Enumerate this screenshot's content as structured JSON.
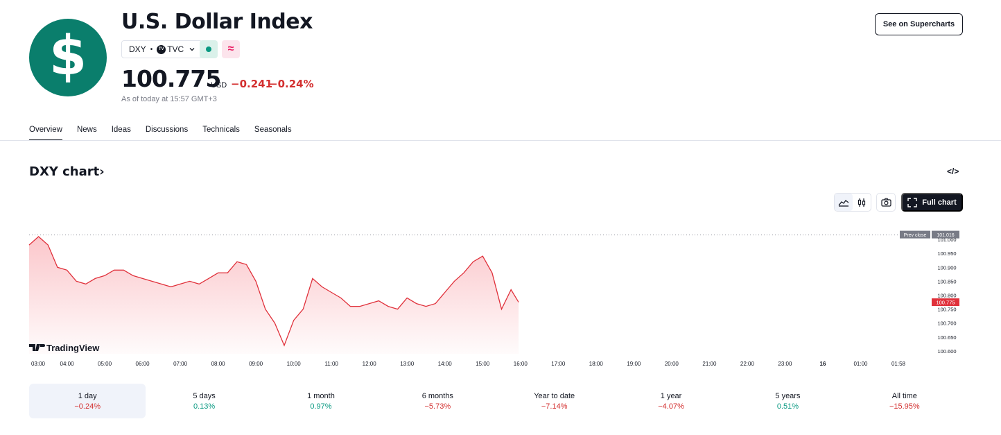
{
  "header": {
    "logo_glyph": "$",
    "title": "U.S. Dollar Index",
    "symbol": "DXY",
    "separator": "•",
    "exchange_badge": "TV",
    "exchange": "TVC",
    "delay_glyph": "≈",
    "price": "100.775",
    "currency": "USD",
    "change": "−0.241",
    "change_percent": "−0.24%",
    "as_of": "As of today at 15:57 GMT+3",
    "supercharts_button": "See on Supercharts"
  },
  "tabs": [
    {
      "label": "Overview",
      "active": true
    },
    {
      "label": "News",
      "active": false
    },
    {
      "label": "Ideas",
      "active": false
    },
    {
      "label": "Discussions",
      "active": false
    },
    {
      "label": "Technicals",
      "active": false
    },
    {
      "label": "Seasonals",
      "active": false
    }
  ],
  "chart_section": {
    "title": "DXY chart",
    "title_chevron": "›",
    "embed_icon": "</>",
    "full_chart_button": "Full chart",
    "watermark": "TradingView"
  },
  "colors": {
    "brand": "#0a7e6c",
    "negative": "#d32f2f",
    "positive": "#089981",
    "line": "#e0313b"
  },
  "chart_data": {
    "type": "area",
    "series": [
      {
        "x": [
          "03:00",
          "03:15",
          "03:30",
          "03:45",
          "04:00",
          "04:15",
          "04:30",
          "04:45",
          "05:00",
          "05:15",
          "05:30",
          "05:45",
          "06:00",
          "06:15",
          "06:30",
          "06:45",
          "07:00",
          "07:15",
          "07:30",
          "07:45",
          "08:00",
          "08:15",
          "08:30",
          "08:45",
          "09:00",
          "09:15",
          "09:30",
          "09:45",
          "10:00",
          "10:15",
          "10:30",
          "10:45",
          "11:00",
          "11:15",
          "11:30",
          "11:45",
          "12:00",
          "12:15",
          "12:30",
          "12:45",
          "13:00",
          "13:15",
          "13:30",
          "13:45",
          "14:00",
          "14:15",
          "14:30",
          "14:45",
          "15:00",
          "15:15",
          "15:30",
          "15:45",
          "15:57"
        ],
        "values": [
          100.98,
          101.01,
          100.98,
          100.9,
          100.89,
          100.85,
          100.84,
          100.86,
          100.87,
          100.89,
          100.89,
          100.87,
          100.86,
          100.85,
          100.84,
          100.83,
          100.84,
          100.85,
          100.84,
          100.86,
          100.88,
          100.88,
          100.92,
          100.91,
          100.85,
          100.75,
          100.7,
          100.62,
          100.71,
          100.75,
          100.86,
          100.83,
          100.81,
          100.79,
          100.76,
          100.76,
          100.77,
          100.78,
          100.76,
          100.75,
          100.79,
          100.77,
          100.76,
          100.77,
          100.81,
          100.85,
          100.88,
          100.92,
          100.94,
          100.88,
          100.75,
          100.82,
          100.775
        ]
      }
    ],
    "prev_close": 101.016,
    "prev_close_label": "Prev close",
    "last_value": "100.775",
    "ylim": [
      100.59,
      101.02
    ],
    "y_ticks": [
      "101.000",
      "100.950",
      "100.900",
      "100.850",
      "100.800",
      "100.750",
      "100.700",
      "100.650",
      "100.600"
    ],
    "x_ticks": [
      "03:00",
      "04:00",
      "05:00",
      "06:00",
      "07:00",
      "08:00",
      "09:00",
      "10:00",
      "11:00",
      "12:00",
      "13:00",
      "14:00",
      "15:00",
      "16:00",
      "17:00",
      "18:00",
      "19:00",
      "20:00",
      "21:00",
      "22:00",
      "23:00",
      "16",
      "01:00",
      "01:58"
    ]
  },
  "periods": [
    {
      "label": "1 day",
      "value": "−0.24%",
      "trend": "neg",
      "active": true
    },
    {
      "label": "5 days",
      "value": "0.13%",
      "trend": "pos",
      "active": false
    },
    {
      "label": "1 month",
      "value": "0.97%",
      "trend": "pos",
      "active": false
    },
    {
      "label": "6 months",
      "value": "−5.73%",
      "trend": "neg",
      "active": false
    },
    {
      "label": "Year to date",
      "value": "−7.14%",
      "trend": "neg",
      "active": false
    },
    {
      "label": "1 year",
      "value": "−4.07%",
      "trend": "neg",
      "active": false
    },
    {
      "label": "5 years",
      "value": "0.51%",
      "trend": "pos",
      "active": false
    },
    {
      "label": "All time",
      "value": "−15.95%",
      "trend": "neg",
      "active": false
    }
  ]
}
